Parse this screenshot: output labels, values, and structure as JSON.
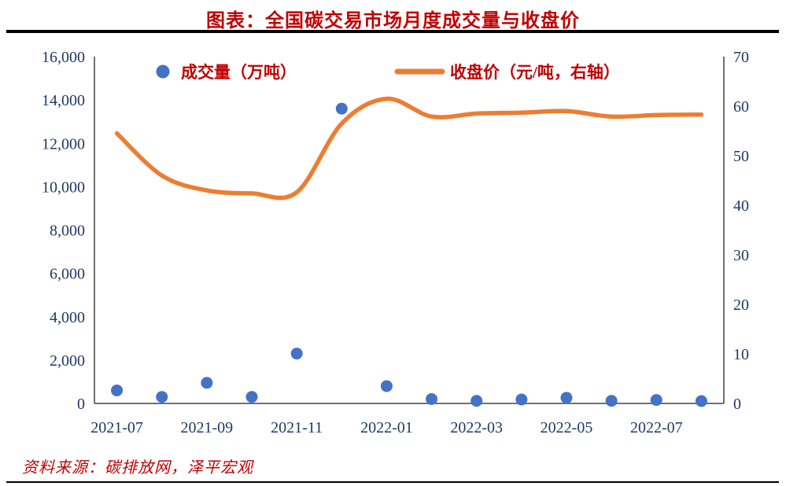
{
  "title": "图表：全国碳交易市场月度成交量与收盘价",
  "source": "资料来源：碳排放网，泽平宏观",
  "colors": {
    "title_text": "#C00000",
    "legend_text": "#C00000",
    "source_text": "#C00000",
    "axis_text": "#1F3864",
    "axis_line": "#404040",
    "rule": "#000000",
    "scatter": "#4472C4",
    "line": "#ED7D31"
  },
  "chart_data": {
    "type": "scatter",
    "subtype": "scatter-and-line-dual-axis",
    "title": "图表：全国碳交易市场月度成交量与收盘价",
    "months": [
      "2021-07",
      "2021-08",
      "2021-09",
      "2021-10",
      "2021-11",
      "2021-12",
      "2022-01",
      "2022-02",
      "2022-03",
      "2022-04",
      "2022-05",
      "2022-06",
      "2022-07",
      "2022-08"
    ],
    "x_tick_labels": [
      "2021-07",
      "2021-09",
      "2021-11",
      "2022-01",
      "2022-03",
      "2022-05",
      "2022-07"
    ],
    "x_tick_every": 2,
    "series": [
      {
        "name": "成交量（万吨）",
        "type": "scatter",
        "axis": "left",
        "values": [
          600,
          300,
          950,
          300,
          2300,
          13600,
          800,
          200,
          120,
          180,
          260,
          120,
          160,
          110
        ]
      },
      {
        "name": "收盘价（元/吨，右轴）",
        "type": "line",
        "axis": "right",
        "values": [
          54.5,
          46.0,
          43.0,
          42.4,
          42.6,
          56.5,
          61.5,
          57.9,
          58.5,
          58.7,
          59.0,
          57.9,
          58.2,
          58.3
        ]
      }
    ],
    "left_axis": {
      "min": 0,
      "max": 16000,
      "step": 2000,
      "labels": [
        "0",
        "2,000",
        "4,000",
        "6,000",
        "8,000",
        "10,000",
        "12,000",
        "14,000",
        "16,000"
      ]
    },
    "right_axis": {
      "min": 0,
      "max": 70,
      "step": 10,
      "labels": [
        "0",
        "10",
        "20",
        "30",
        "40",
        "50",
        "60",
        "70"
      ]
    },
    "legend_position": "top-inside",
    "grid": false
  }
}
